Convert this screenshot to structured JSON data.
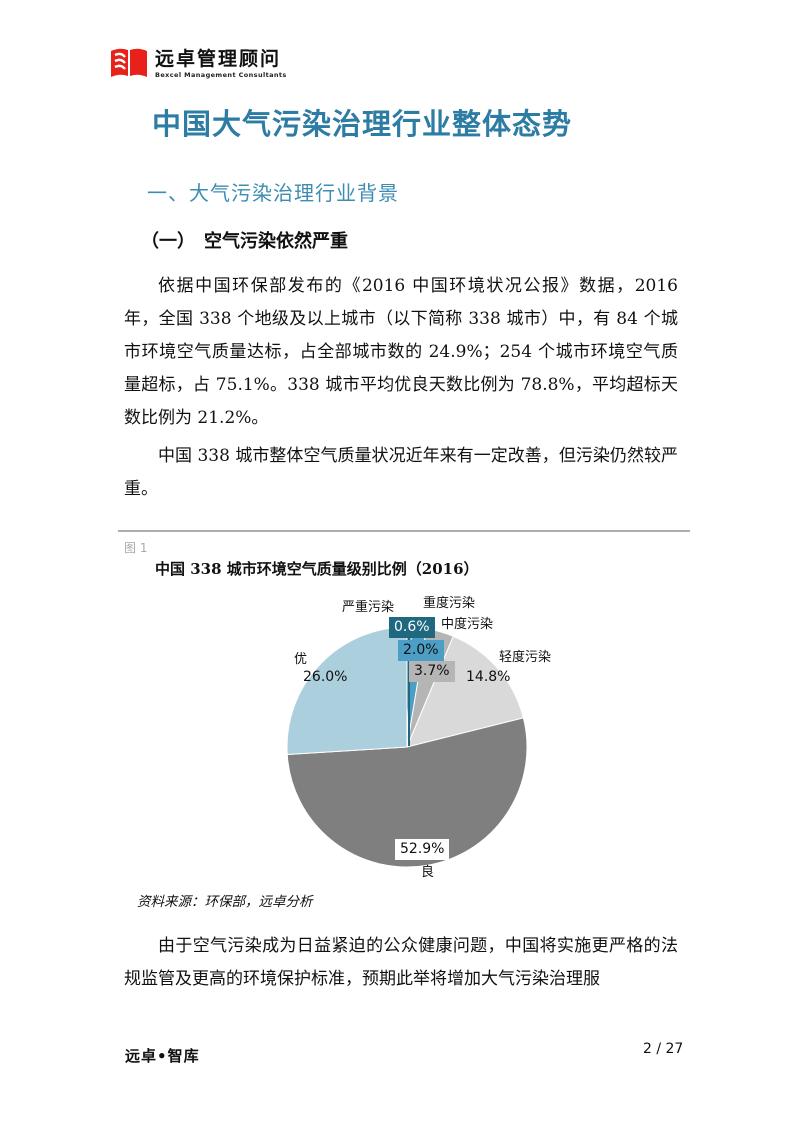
{
  "logo": {
    "cn": "远卓管理顾问",
    "en": "Bexcel Management Consultants",
    "mark_color": "#e8221a"
  },
  "header": {
    "title": "中国大气污染治理行业整体态势",
    "title_color": "#2d7ca3",
    "section_heading": "一、大气污染治理行业背景",
    "subsection_heading": "（一）　空气污染依然严重"
  },
  "paragraphs": {
    "p1": "依据中国环保部发布的《2016 中国环境状况公报》数据，2016 年，全国 338 个地级及以上城市（以下简称 338 城市）中，有 84 个城市环境空气质量达标，占全部城市数的 24.9%；254 个城市环境空气质量超标，占 75.1%。338 城市平均优良天数比例为 78.8%，平均超标天数比例为 21.2%。",
    "p2": "中国 338 城市整体空气质量状况近年来有一定改善，但污染仍然较严重。",
    "p3": "由于空气污染成为日益紧迫的公众健康问题，中国将实施更严格的法规监管及更高的环境保护标准，预期此举将增加大气污染治理服"
  },
  "figure": {
    "label": "图 1",
    "title": "中国 338 城市环境空气质量级别比例（2016）",
    "source": "资料来源：环保部，远卓分析"
  },
  "chart_data": {
    "type": "pie",
    "title": "中国 338 城市环境空气质量级别比例（2016）",
    "unit": "%",
    "order": "clockwise-from-top",
    "slices": [
      {
        "label": "严重污染",
        "value": 0.6,
        "pct_label": "0.6%",
        "color": "#1e6880"
      },
      {
        "label": "重度污染",
        "value": 2.0,
        "pct_label": "2.0%",
        "color": "#4c9ec6"
      },
      {
        "label": "中度污染",
        "value": 3.7,
        "pct_label": "3.7%",
        "color": "#b5b5b5"
      },
      {
        "label": "轻度污染",
        "value": 14.8,
        "pct_label": "14.8%",
        "color": "#d9d9d9"
      },
      {
        "label": "良",
        "value": 52.9,
        "pct_label": "52.9%",
        "color": "#7f7f7f"
      },
      {
        "label": "优",
        "value": 26.0,
        "pct_label": "26.0%",
        "color": "#accfde"
      }
    ]
  },
  "footer": {
    "brand": "远卓•智库",
    "page": "2 / 27"
  }
}
